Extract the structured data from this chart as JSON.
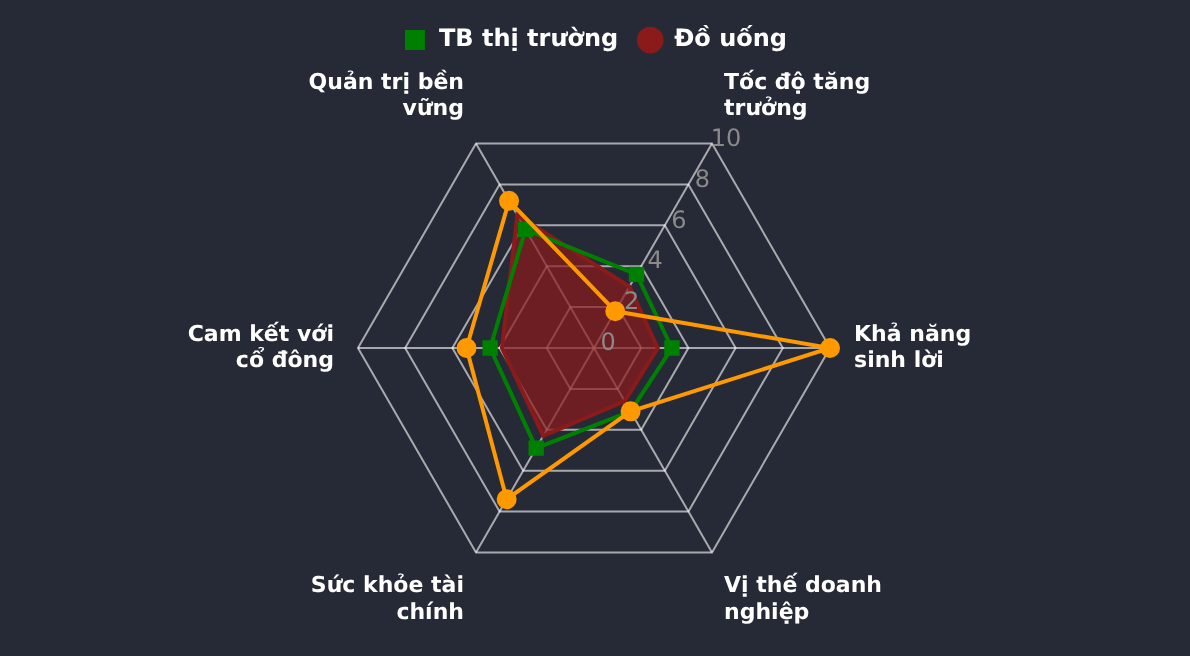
{
  "chart_data": {
    "type": "radar",
    "categories": [
      "Tốc độ tăng trưởng",
      "Khả năng sinh lời",
      "Vị thế doanh nghiệp",
      "Sức khỏe tài chính",
      "Cam kết với cổ đông",
      "Quản trị bền vững"
    ],
    "series": [
      {
        "color": "#ff9900",
        "marker": "circle",
        "values": [
          1.8,
          10,
          3.1,
          7.4,
          5.4,
          7.2
        ]
      },
      {
        "name": "Đồ uống",
        "type": "area",
        "color": "#8b1a1a",
        "marker": "none",
        "values": [
          3.0,
          2.7,
          2.6,
          4.3,
          3.9,
          6.5
        ]
      },
      {
        "name": "TB thị trường",
        "color": "#008000",
        "marker": "square",
        "values": [
          3.6,
          3.3,
          3.1,
          4.9,
          4.4,
          5.8
        ]
      }
    ],
    "ylim": [
      0,
      10
    ],
    "yticks": [
      0,
      2,
      4,
      6,
      8,
      10
    ],
    "grid": true,
    "legend": "top"
  }
}
